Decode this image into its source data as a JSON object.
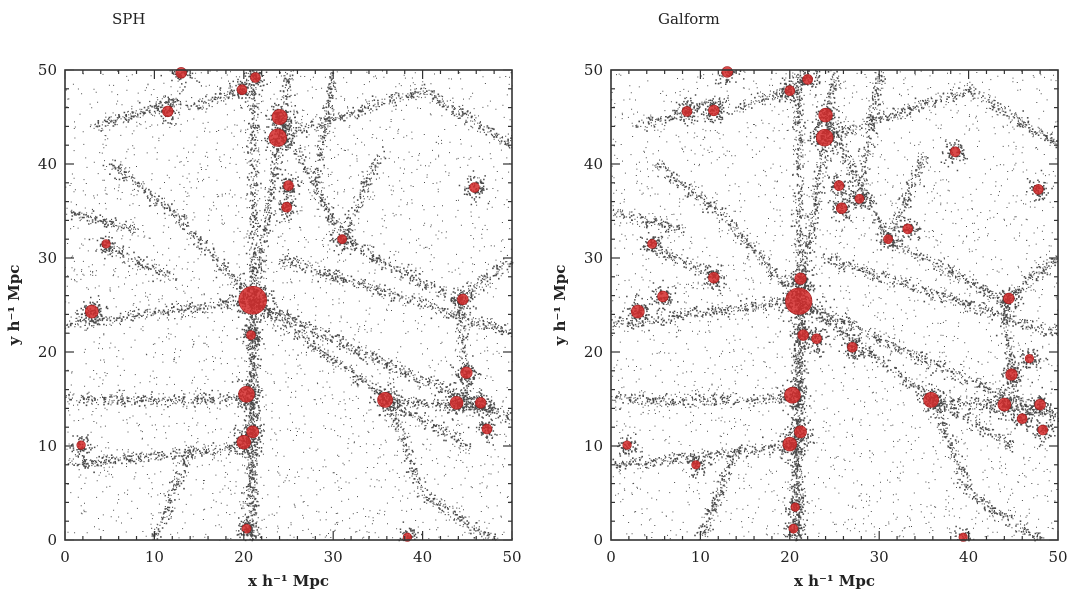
{
  "chart_data": [
    {
      "type": "scatter",
      "title": "SPH",
      "xlabel": "x h⁻¹ Mpc",
      "ylabel": "y h⁻¹ Mpc",
      "xlim": [
        0,
        50
      ],
      "ylim": [
        0,
        50
      ],
      "xticks": [
        "0",
        "10",
        "20",
        "30",
        "40",
        "50"
      ],
      "yticks": [
        "0",
        "10",
        "20",
        "30",
        "40",
        "50"
      ],
      "dark_matter_color": "#4a4a4a",
      "galaxy_color": "#d42a2a",
      "galaxies": [
        {
          "x": 21.0,
          "y": 25.5,
          "size": 3.2
        },
        {
          "x": 24.0,
          "y": 45.0,
          "size": 1.5
        },
        {
          "x": 23.8,
          "y": 42.8,
          "size": 1.8
        },
        {
          "x": 13.0,
          "y": 49.7,
          "size": 0.9
        },
        {
          "x": 21.3,
          "y": 49.2,
          "size": 0.8
        },
        {
          "x": 19.8,
          "y": 47.9,
          "size": 0.8
        },
        {
          "x": 11.5,
          "y": 45.6,
          "size": 0.9
        },
        {
          "x": 25.0,
          "y": 37.7,
          "size": 0.8
        },
        {
          "x": 24.8,
          "y": 35.4,
          "size": 0.8
        },
        {
          "x": 31.0,
          "y": 32.0,
          "size": 0.7
        },
        {
          "x": 4.6,
          "y": 31.5,
          "size": 0.6
        },
        {
          "x": 3.0,
          "y": 24.3,
          "size": 1.2
        },
        {
          "x": 20.8,
          "y": 21.8,
          "size": 0.7
        },
        {
          "x": 20.3,
          "y": 15.5,
          "size": 1.6
        },
        {
          "x": 21.0,
          "y": 11.5,
          "size": 1.1
        },
        {
          "x": 20.0,
          "y": 10.4,
          "size": 1.3
        },
        {
          "x": 20.3,
          "y": 1.2,
          "size": 0.7
        },
        {
          "x": 35.8,
          "y": 14.9,
          "size": 1.5
        },
        {
          "x": 44.5,
          "y": 25.6,
          "size": 0.9
        },
        {
          "x": 43.8,
          "y": 14.6,
          "size": 1.2
        },
        {
          "x": 44.9,
          "y": 17.8,
          "size": 1.0
        },
        {
          "x": 46.5,
          "y": 14.6,
          "size": 0.9
        },
        {
          "x": 47.2,
          "y": 11.8,
          "size": 0.8
        },
        {
          "x": 45.8,
          "y": 37.5,
          "size": 0.8
        },
        {
          "x": 1.8,
          "y": 10.1,
          "size": 0.6
        },
        {
          "x": 38.3,
          "y": 0.3,
          "size": 0.6
        }
      ]
    },
    {
      "type": "scatter",
      "title": "Galform",
      "xlabel": "x h⁻¹ Mpc",
      "ylabel": "y h⁻¹ Mpc",
      "xlim": [
        0,
        50
      ],
      "ylim": [
        0,
        50
      ],
      "xticks": [
        "0",
        "10",
        "20",
        "30",
        "40",
        "50"
      ],
      "yticks": [
        "0",
        "10",
        "20",
        "30",
        "40",
        "50"
      ],
      "dark_matter_color": "#4a4a4a",
      "galaxy_color": "#d42a2a",
      "galaxies": [
        {
          "x": 21.0,
          "y": 25.4,
          "size": 3.0
        },
        {
          "x": 21.2,
          "y": 27.8,
          "size": 1.0
        },
        {
          "x": 24.0,
          "y": 45.2,
          "size": 1.3
        },
        {
          "x": 23.9,
          "y": 42.8,
          "size": 1.7
        },
        {
          "x": 13.0,
          "y": 49.8,
          "size": 0.9
        },
        {
          "x": 22.0,
          "y": 49.0,
          "size": 0.8
        },
        {
          "x": 20.0,
          "y": 47.8,
          "size": 0.8
        },
        {
          "x": 11.5,
          "y": 45.7,
          "size": 0.9
        },
        {
          "x": 8.5,
          "y": 45.6,
          "size": 0.8
        },
        {
          "x": 38.5,
          "y": 41.3,
          "size": 0.8
        },
        {
          "x": 25.5,
          "y": 37.7,
          "size": 0.8
        },
        {
          "x": 25.8,
          "y": 35.3,
          "size": 0.9
        },
        {
          "x": 27.8,
          "y": 36.3,
          "size": 0.7
        },
        {
          "x": 33.2,
          "y": 33.1,
          "size": 0.8
        },
        {
          "x": 31.0,
          "y": 32.0,
          "size": 0.7
        },
        {
          "x": 4.6,
          "y": 31.5,
          "size": 0.7
        },
        {
          "x": 11.5,
          "y": 27.9,
          "size": 0.9
        },
        {
          "x": 5.8,
          "y": 25.9,
          "size": 0.9
        },
        {
          "x": 3.0,
          "y": 24.3,
          "size": 1.2
        },
        {
          "x": 21.5,
          "y": 21.8,
          "size": 0.9
        },
        {
          "x": 23.0,
          "y": 21.4,
          "size": 0.8
        },
        {
          "x": 27.0,
          "y": 20.5,
          "size": 0.8
        },
        {
          "x": 20.3,
          "y": 15.4,
          "size": 1.6
        },
        {
          "x": 21.2,
          "y": 11.5,
          "size": 1.1
        },
        {
          "x": 20.0,
          "y": 10.2,
          "size": 1.3
        },
        {
          "x": 20.6,
          "y": 3.5,
          "size": 0.6
        },
        {
          "x": 20.4,
          "y": 1.2,
          "size": 0.7
        },
        {
          "x": 35.8,
          "y": 14.9,
          "size": 1.5
        },
        {
          "x": 44.5,
          "y": 25.7,
          "size": 0.9
        },
        {
          "x": 44.8,
          "y": 17.6,
          "size": 1.0
        },
        {
          "x": 46.8,
          "y": 19.3,
          "size": 0.6
        },
        {
          "x": 44.0,
          "y": 14.4,
          "size": 1.2
        },
        {
          "x": 46.0,
          "y": 12.9,
          "size": 0.8
        },
        {
          "x": 48.0,
          "y": 14.4,
          "size": 0.9
        },
        {
          "x": 48.3,
          "y": 11.7,
          "size": 0.8
        },
        {
          "x": 47.8,
          "y": 37.3,
          "size": 0.8
        },
        {
          "x": 1.8,
          "y": 10.1,
          "size": 0.6
        },
        {
          "x": 9.5,
          "y": 8.0,
          "size": 0.6
        },
        {
          "x": 39.4,
          "y": 0.3,
          "size": 0.6
        }
      ]
    }
  ]
}
